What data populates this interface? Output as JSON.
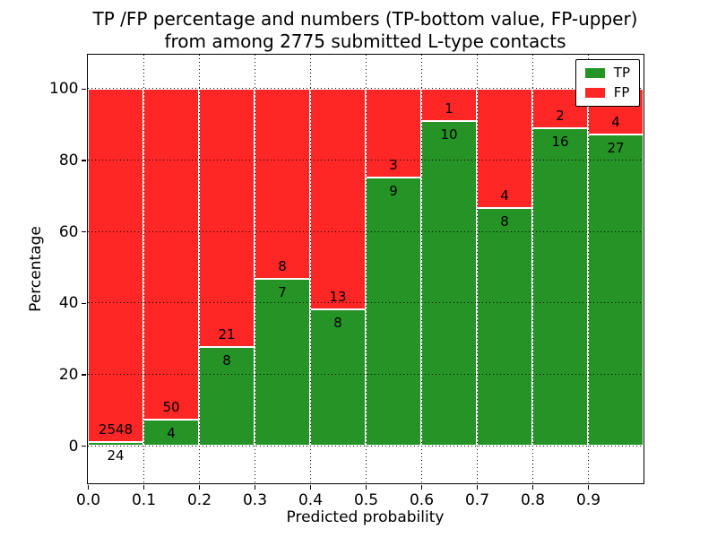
{
  "figure": {
    "title_line1": "TP /FP percentage and numbers (TP-bottom value, FP-upper)",
    "title_line2": "from among 2775 submitted L-type contacts"
  },
  "axes": {
    "xlabel": "Predicted probability",
    "ylabel": "Percentage"
  },
  "legend": {
    "items": [
      {
        "label": "TP",
        "color": "#269326"
      },
      {
        "label": "FP",
        "color": "#ff2626"
      }
    ],
    "position": "upper right"
  },
  "chart_data": {
    "type": "bar",
    "stacked": true,
    "normalized_to_percent": 100,
    "title": "TP /FP percentage and numbers (TP-bottom value, FP-upper) from among 2775 submitted L-type contacts",
    "xlabel": "Predicted probability",
    "ylabel": "Percentage",
    "total_contacts": 2775,
    "bin_width": 0.1,
    "bin_starts": [
      0.0,
      0.1,
      0.2,
      0.3,
      0.4,
      0.5,
      0.6,
      0.7,
      0.8,
      0.9
    ],
    "x_tick_labels": [
      "0.0",
      "0.1",
      "0.2",
      "0.3",
      "0.4",
      "0.5",
      "0.6",
      "0.7",
      "0.8",
      "0.9"
    ],
    "y_ticks": [
      0,
      20,
      40,
      60,
      80,
      100
    ],
    "xlim": [
      0,
      1
    ],
    "ylim": [
      -10.5,
      109.5
    ],
    "grid": "dotted",
    "legend_position": "upper right",
    "series": [
      {
        "name": "TP",
        "color": "#269326",
        "counts": [
          24,
          4,
          8,
          7,
          8,
          9,
          10,
          8,
          16,
          27
        ]
      },
      {
        "name": "FP",
        "color": "#ff2626",
        "counts": [
          2548,
          50,
          21,
          8,
          13,
          3,
          1,
          4,
          2,
          4
        ]
      }
    ],
    "tp_percent": [
      0.93,
      7.41,
      27.59,
      46.67,
      38.1,
      75.0,
      90.91,
      66.67,
      88.89,
      87.1
    ]
  }
}
